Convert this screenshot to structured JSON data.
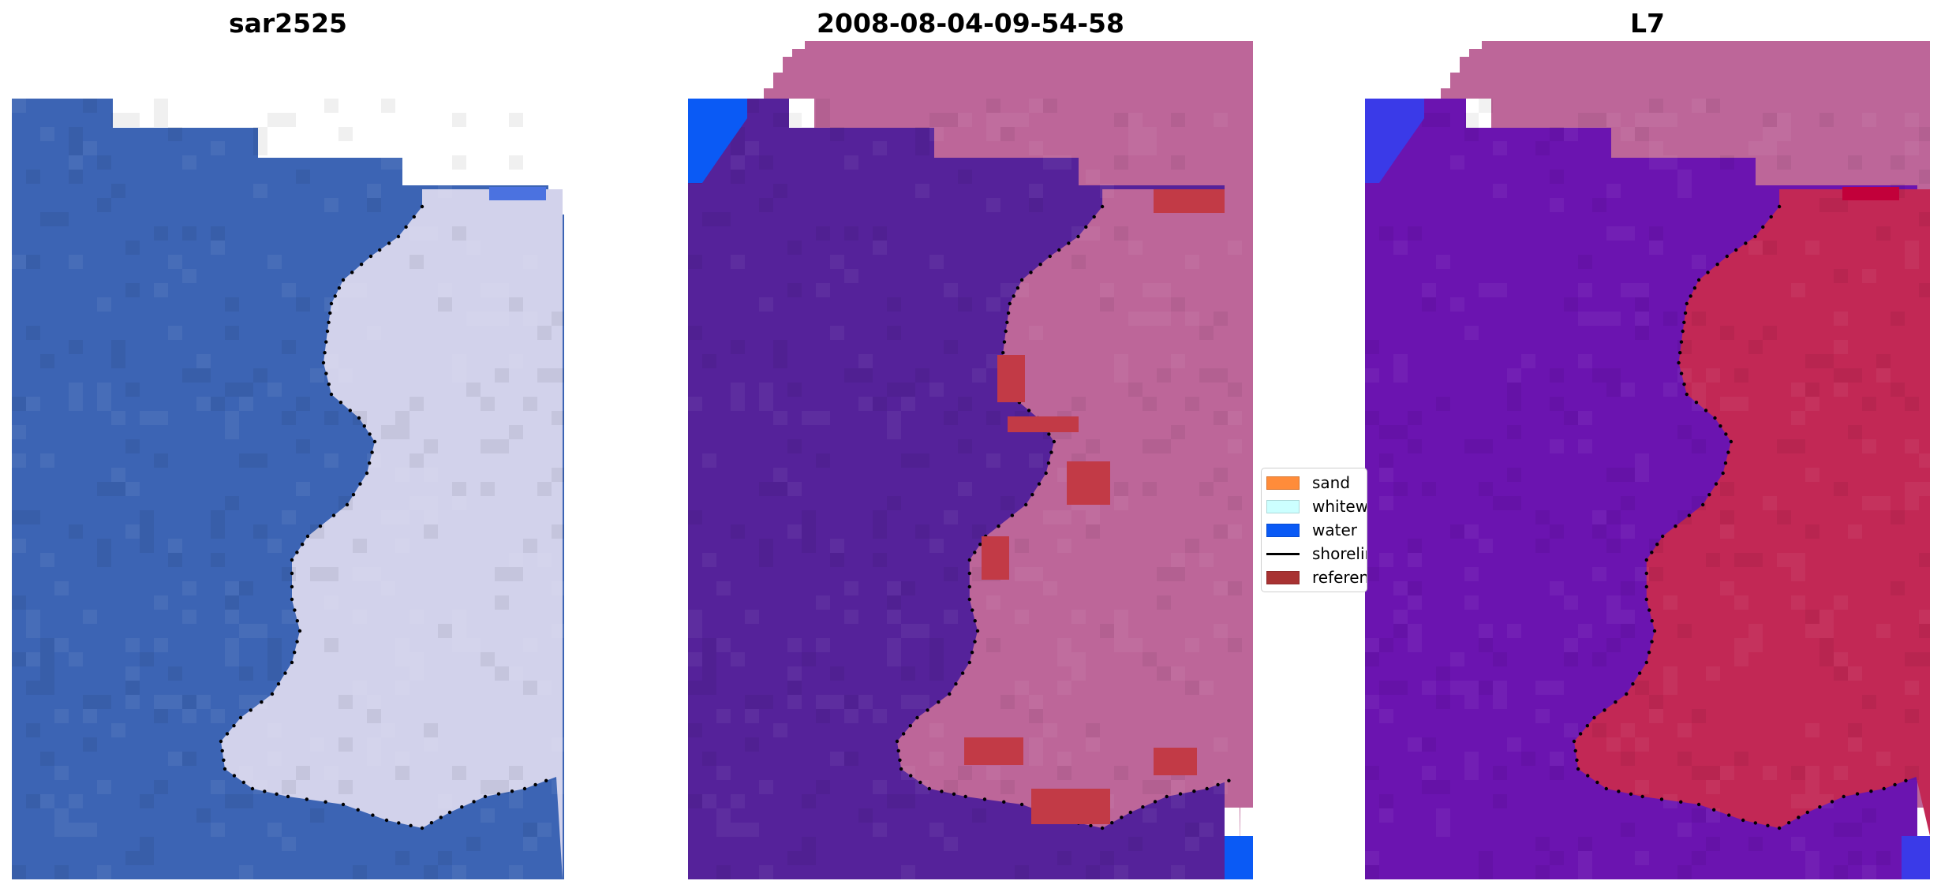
{
  "panels": [
    {
      "title": "sar2525"
    },
    {
      "title": "2008-08-04-09-54-58"
    },
    {
      "title": "L7"
    }
  ],
  "legend": {
    "items": [
      {
        "label": "sand",
        "color": "#ff8c3a",
        "kind": "patch"
      },
      {
        "label": "whitewater",
        "color": "#ccffff",
        "kind": "patch"
      },
      {
        "label": "water",
        "color": "#0a5af5",
        "kind": "patch"
      },
      {
        "label": "shoreline",
        "color": "#000000",
        "kind": "line"
      },
      {
        "label": "reference shoreline",
        "color": "#a83232",
        "kind": "patch"
      }
    ]
  },
  "colors": {
    "rgb_water": "#3c64b4",
    "rgb_land": "#d2d2eb",
    "class_water": "#55229a",
    "class_land": "#bd6699",
    "class_ref": "#c23a46",
    "class_blue": "#0a5af5",
    "mndwi_water": "#6b14b0",
    "mndwi_land": "#c22855",
    "mndwi_corner": "#c2003a"
  }
}
